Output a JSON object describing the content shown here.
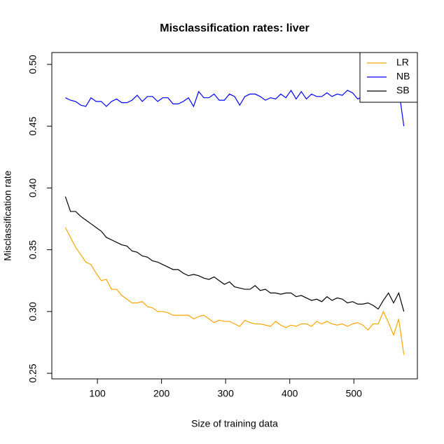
{
  "chart_data": {
    "type": "line",
    "title": "Misclassification rates: liver",
    "x_label": "Size of training data",
    "y_label": "Misclassification rate",
    "x": [
      50,
      58,
      66,
      74,
      82,
      90,
      98,
      106,
      114,
      122,
      130,
      138,
      146,
      154,
      162,
      170,
      178,
      186,
      194,
      202,
      210,
      218,
      226,
      234,
      242,
      250,
      258,
      266,
      274,
      282,
      290,
      298,
      306,
      314,
      322,
      330,
      338,
      346,
      354,
      362,
      370,
      378,
      386,
      394,
      402,
      410,
      418,
      426,
      434,
      442,
      450,
      458,
      466,
      474,
      482,
      490,
      498,
      506,
      514,
      522,
      530,
      538,
      546,
      554,
      562,
      570,
      578
    ],
    "series": [
      {
        "name": "LR",
        "color": "#ffa500",
        "values": [
          0.368,
          0.36,
          0.352,
          0.346,
          0.34,
          0.338,
          0.331,
          0.325,
          0.326,
          0.318,
          0.318,
          0.313,
          0.31,
          0.307,
          0.307,
          0.308,
          0.304,
          0.303,
          0.3,
          0.3,
          0.299,
          0.297,
          0.297,
          0.297,
          0.297,
          0.294,
          0.296,
          0.297,
          0.294,
          0.291,
          0.293,
          0.292,
          0.292,
          0.29,
          0.288,
          0.293,
          0.291,
          0.29,
          0.29,
          0.289,
          0.288,
          0.292,
          0.289,
          0.287,
          0.289,
          0.288,
          0.29,
          0.29,
          0.288,
          0.292,
          0.29,
          0.292,
          0.29,
          0.289,
          0.29,
          0.288,
          0.29,
          0.291,
          0.289,
          0.285,
          0.29,
          0.29,
          0.3,
          0.291,
          0.281,
          0.294,
          0.265
        ]
      },
      {
        "name": "NB",
        "color": "#0000ff",
        "values": [
          0.473,
          0.471,
          0.47,
          0.467,
          0.466,
          0.473,
          0.47,
          0.47,
          0.466,
          0.47,
          0.472,
          0.469,
          0.469,
          0.471,
          0.475,
          0.47,
          0.474,
          0.474,
          0.47,
          0.473,
          0.473,
          0.468,
          0.468,
          0.47,
          0.473,
          0.466,
          0.478,
          0.473,
          0.473,
          0.476,
          0.471,
          0.471,
          0.476,
          0.474,
          0.467,
          0.474,
          0.476,
          0.476,
          0.474,
          0.471,
          0.473,
          0.472,
          0.476,
          0.473,
          0.479,
          0.472,
          0.478,
          0.472,
          0.476,
          0.474,
          0.474,
          0.477,
          0.474,
          0.476,
          0.475,
          0.479,
          0.477,
          0.472,
          0.474,
          0.473,
          0.476,
          0.473,
          0.474,
          0.476,
          0.473,
          0.48,
          0.45
        ]
      },
      {
        "name": "SB",
        "color": "#000000",
        "values": [
          0.393,
          0.381,
          0.381,
          0.377,
          0.374,
          0.371,
          0.368,
          0.365,
          0.36,
          0.358,
          0.356,
          0.354,
          0.353,
          0.349,
          0.348,
          0.345,
          0.344,
          0.341,
          0.34,
          0.338,
          0.336,
          0.334,
          0.334,
          0.331,
          0.329,
          0.33,
          0.329,
          0.327,
          0.326,
          0.328,
          0.325,
          0.322,
          0.324,
          0.32,
          0.319,
          0.318,
          0.318,
          0.321,
          0.317,
          0.318,
          0.315,
          0.315,
          0.314,
          0.315,
          0.315,
          0.312,
          0.313,
          0.311,
          0.309,
          0.31,
          0.308,
          0.312,
          0.309,
          0.311,
          0.31,
          0.307,
          0.308,
          0.306,
          0.306,
          0.307,
          0.305,
          0.302,
          0.309,
          0.315,
          0.307,
          0.315,
          0.3
        ]
      }
    ],
    "xlim": [
      28.9,
      599.1
    ],
    "ylim": [
      0.2455,
      0.5096
    ],
    "xticks": [
      100,
      200,
      300,
      400,
      500
    ],
    "yticks": [
      0.25,
      {
        "value": 0.3,
        "label": "0.30"
      },
      0.35,
      {
        "value": 0.4,
        "label": "0.40"
      },
      0.45,
      {
        "value": 0.5,
        "label": "0.50"
      }
    ],
    "legend": "top-right",
    "grid": false
  }
}
